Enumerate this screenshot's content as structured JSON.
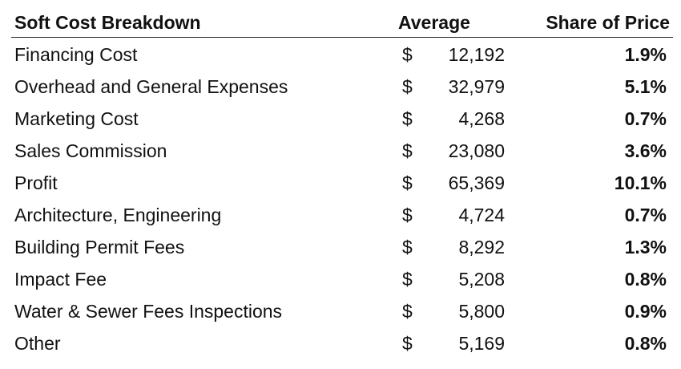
{
  "table": {
    "headers": {
      "breakdown": "Soft Cost Breakdown",
      "average": "Average",
      "share": "Share of Price"
    },
    "currency_symbol": "$",
    "rows": [
      {
        "label": "Financing Cost",
        "average": "12,192",
        "share": "1.9%"
      },
      {
        "label": "Overhead and General Expenses",
        "average": "32,979",
        "share": "5.1%"
      },
      {
        "label": "Marketing Cost",
        "average": "4,268",
        "share": "0.7%"
      },
      {
        "label": "Sales Commission",
        "average": "23,080",
        "share": "3.6%"
      },
      {
        "label": "Profit",
        "average": "65,369",
        "share": "10.1%"
      },
      {
        "label": "Architecture, Engineering",
        "average": "4,724",
        "share": "0.7%"
      },
      {
        "label": "Building Permit Fees",
        "average": "8,292",
        "share": "1.3%"
      },
      {
        "label": "Impact Fee",
        "average": "5,208",
        "share": "0.8%"
      },
      {
        "label": "Water & Sewer Fees Inspections",
        "average": "5,800",
        "share": "0.9%"
      },
      {
        "label": "Other",
        "average": "5,169",
        "share": "0.8%"
      }
    ]
  }
}
